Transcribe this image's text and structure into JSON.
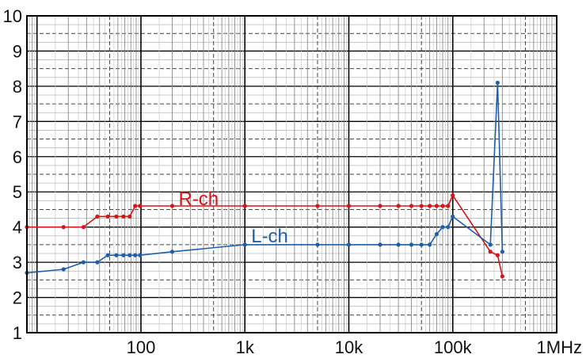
{
  "chart_data": {
    "type": "line",
    "xscale": "log",
    "xlim": [
      8,
      1000000
    ],
    "ylim": [
      1,
      10
    ],
    "grid": true,
    "x_tick_labels": [
      {
        "value": 100,
        "label": "100"
      },
      {
        "value": 1000,
        "label": "1k"
      },
      {
        "value": 10000,
        "label": "10k"
      },
      {
        "value": 100000,
        "label": "100k"
      },
      {
        "value": 1000000,
        "label": "1MHz"
      }
    ],
    "y_tick_labels": [
      {
        "value": 1,
        "label": "1"
      },
      {
        "value": 2,
        "label": "2"
      },
      {
        "value": 3,
        "label": "3"
      },
      {
        "value": 4,
        "label": "4"
      },
      {
        "value": 5,
        "label": "5"
      },
      {
        "value": 6,
        "label": "6"
      },
      {
        "value": 7,
        "label": "7"
      },
      {
        "value": 8,
        "label": "8"
      },
      {
        "value": 9,
        "label": "9"
      },
      {
        "value": 10,
        "label": "10"
      }
    ],
    "series": [
      {
        "name": "R-ch",
        "color": "#d7141c",
        "points": [
          [
            8,
            4.0
          ],
          [
            18,
            4.0
          ],
          [
            28,
            4.0
          ],
          [
            38,
            4.3
          ],
          [
            48,
            4.3
          ],
          [
            58,
            4.3
          ],
          [
            68,
            4.3
          ],
          [
            78,
            4.3
          ],
          [
            88,
            4.6
          ],
          [
            98,
            4.6
          ],
          [
            200,
            4.6
          ],
          [
            1000,
            4.6
          ],
          [
            5000,
            4.6
          ],
          [
            10000,
            4.6
          ],
          [
            20000,
            4.6
          ],
          [
            30000,
            4.6
          ],
          [
            40000,
            4.6
          ],
          [
            50000,
            4.6
          ],
          [
            60000,
            4.6
          ],
          [
            70000,
            4.6
          ],
          [
            80000,
            4.6
          ],
          [
            90000,
            4.6
          ],
          [
            100000,
            4.9
          ],
          [
            230000,
            3.3
          ],
          [
            270000,
            3.2
          ],
          [
            300000,
            2.6
          ]
        ]
      },
      {
        "name": "L-ch",
        "color": "#1d5fa8",
        "points": [
          [
            8,
            2.7
          ],
          [
            18,
            2.8
          ],
          [
            28,
            3.0
          ],
          [
            38,
            3.0
          ],
          [
            48,
            3.2
          ],
          [
            58,
            3.2
          ],
          [
            68,
            3.2
          ],
          [
            78,
            3.2
          ],
          [
            88,
            3.2
          ],
          [
            98,
            3.2
          ],
          [
            200,
            3.3
          ],
          [
            1000,
            3.5
          ],
          [
            5000,
            3.5
          ],
          [
            10000,
            3.5
          ],
          [
            20000,
            3.5
          ],
          [
            30000,
            3.5
          ],
          [
            40000,
            3.5
          ],
          [
            50000,
            3.5
          ],
          [
            60000,
            3.5
          ],
          [
            70000,
            3.8
          ],
          [
            80000,
            4.0
          ],
          [
            90000,
            4.0
          ],
          [
            100000,
            4.3
          ],
          [
            230000,
            3.5
          ],
          [
            270000,
            8.1
          ],
          [
            300000,
            3.3
          ]
        ]
      }
    ],
    "series_labels": [
      {
        "series": "R-ch",
        "text": "R-ch",
        "x": 200,
        "y": 4.8
      },
      {
        "series": "L-ch",
        "text": "L-ch",
        "x": 1000,
        "y": 3.75
      }
    ]
  }
}
